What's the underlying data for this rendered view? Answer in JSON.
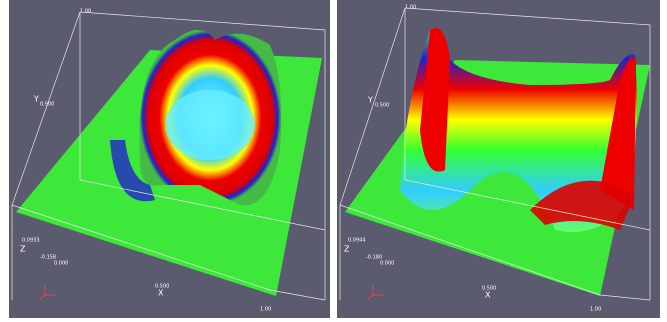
{
  "panels": [
    {
      "labels": {
        "y_top": "1.00",
        "y_title": "Y",
        "y_mid": "0.500",
        "z_title": "Z",
        "z_max": "0.0933",
        "z_min": "-0.158",
        "origin": "0.000",
        "x_title": "X",
        "x_mid": "0.500",
        "x_end": "1.00"
      }
    },
    {
      "labels": {
        "y_top": "1.00",
        "y_title": "Y",
        "y_mid": "0.500",
        "z_title": "Z",
        "z_max": "0.0944",
        "z_min": "-0.180",
        "origin": "0.000",
        "x_title": "X",
        "x_mid": "0.500",
        "x_end": "1.00"
      }
    }
  ]
}
